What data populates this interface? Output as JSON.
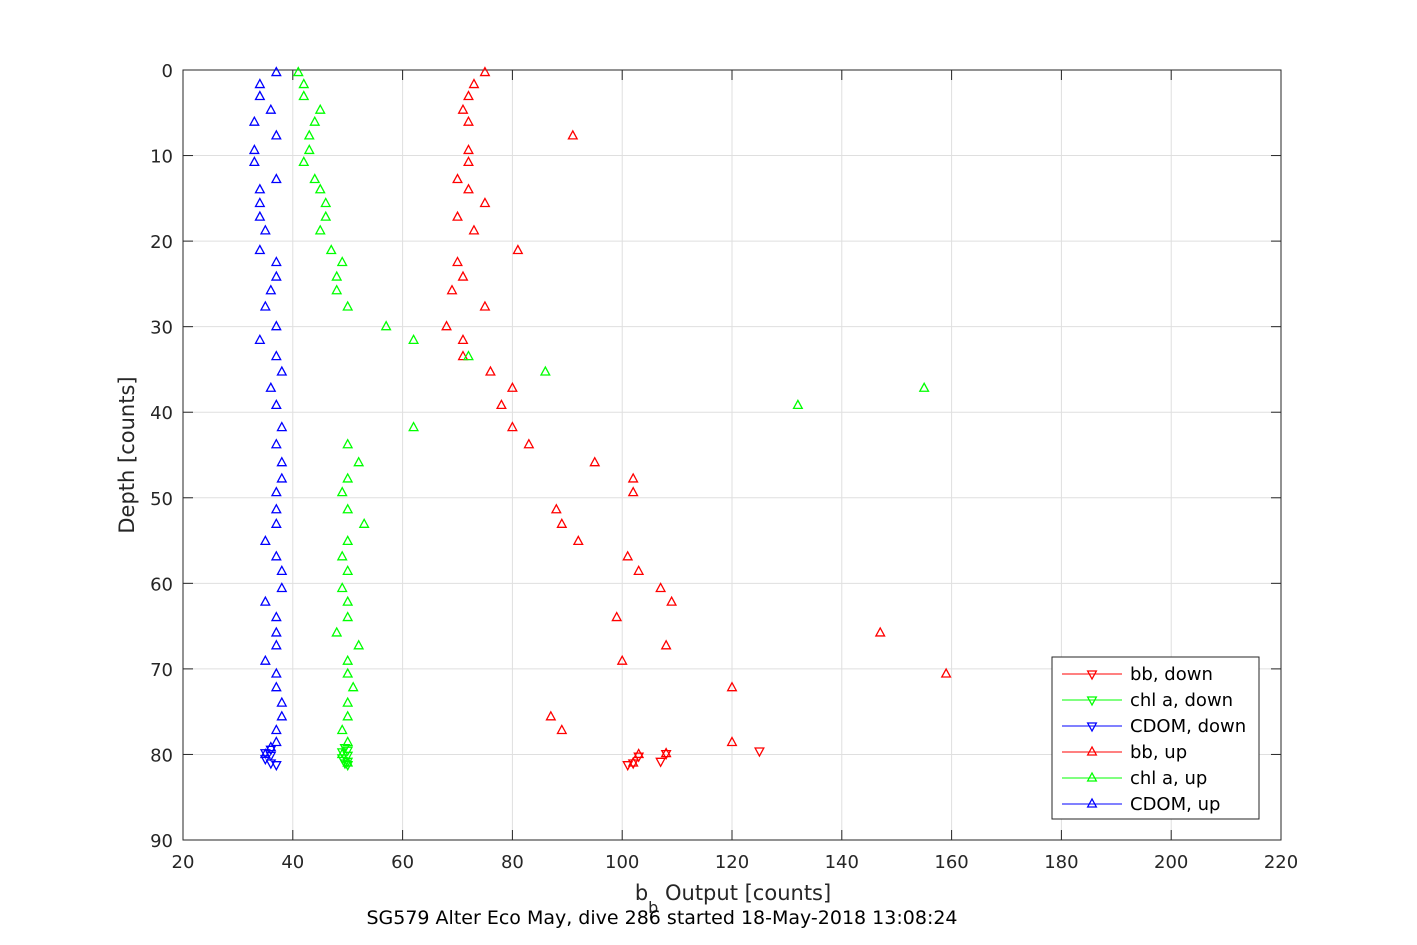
{
  "chart_data": {
    "type": "scatter",
    "caption": "SG579 Alter Eco May, dive 286 started 18-May-2018 13:08:24",
    "xlabel": {
      "main": "b",
      "sub": "b",
      "rest": " Output [counts]"
    },
    "ylabel": "Depth [counts]",
    "xlim": [
      20,
      220
    ],
    "ylim": [
      0,
      90
    ],
    "y_reversed": true,
    "grid": true,
    "legend_position": "bottom-right",
    "x_ticks": [
      20,
      40,
      60,
      80,
      100,
      120,
      140,
      160,
      180,
      200,
      220
    ],
    "y_ticks": [
      0,
      10,
      20,
      30,
      40,
      50,
      60,
      70,
      80,
      90
    ],
    "series": [
      {
        "name": "bb, down",
        "color": "#ff0000",
        "marker": "triangle-down",
        "points": [
          [
            101,
            81.2
          ],
          [
            102,
            81
          ],
          [
            107,
            80.8
          ],
          [
            103,
            80.2
          ],
          [
            108,
            79.9
          ],
          [
            125,
            79.6
          ]
        ]
      },
      {
        "name": "chl a, down",
        "color": "#00ff00",
        "marker": "triangle-down",
        "points": [
          [
            50,
            81.2
          ],
          [
            49.5,
            81
          ],
          [
            50,
            80.8
          ],
          [
            49,
            80.4
          ],
          [
            50,
            80.1
          ],
          [
            49,
            79.7
          ],
          [
            50,
            79.5
          ],
          [
            49.5,
            79.2
          ]
        ]
      },
      {
        "name": "CDOM, down",
        "color": "#0000ff",
        "marker": "triangle-down",
        "points": [
          [
            37,
            81.2
          ],
          [
            36,
            81
          ],
          [
            35,
            80.5
          ],
          [
            36,
            80.1
          ],
          [
            35,
            79.8
          ],
          [
            36,
            79.4
          ]
        ]
      },
      {
        "name": "bb, up",
        "color": "#ff0000",
        "marker": "triangle-up",
        "points": [
          [
            75,
            0.3
          ],
          [
            73,
            1.7
          ],
          [
            72,
            3.1
          ],
          [
            71,
            4.7
          ],
          [
            72,
            6.1
          ],
          [
            91,
            7.7
          ],
          [
            72,
            9.4
          ],
          [
            72,
            10.8
          ],
          [
            70,
            12.8
          ],
          [
            72,
            14
          ],
          [
            75,
            15.6
          ],
          [
            70,
            17.2
          ],
          [
            73,
            18.8
          ],
          [
            81,
            21.1
          ],
          [
            70,
            22.5
          ],
          [
            71,
            24.2
          ],
          [
            69,
            25.8
          ],
          [
            75,
            27.7
          ],
          [
            68,
            30
          ],
          [
            71,
            31.6
          ],
          [
            71,
            33.5
          ],
          [
            76,
            35.3
          ],
          [
            80,
            37.2
          ],
          [
            78,
            39.2
          ],
          [
            80,
            41.8
          ],
          [
            83,
            43.8
          ],
          [
            95,
            45.9
          ],
          [
            102,
            47.8
          ],
          [
            102,
            49.4
          ],
          [
            88,
            51.4
          ],
          [
            89,
            53.1
          ],
          [
            92,
            55.1
          ],
          [
            101,
            56.9
          ],
          [
            103,
            58.6
          ],
          [
            107,
            60.6
          ],
          [
            109,
            62.2
          ],
          [
            99,
            64
          ],
          [
            147,
            65.8
          ],
          [
            108,
            67.3
          ],
          [
            100,
            69.1
          ],
          [
            159,
            70.6
          ],
          [
            120,
            72.2
          ],
          [
            87,
            75.6
          ],
          [
            89,
            77.2
          ],
          [
            120,
            78.6
          ],
          [
            103,
            80
          ],
          [
            108,
            79.9
          ],
          [
            102,
            81
          ]
        ]
      },
      {
        "name": "chl a, up",
        "color": "#00ff00",
        "marker": "triangle-up",
        "points": [
          [
            41,
            0.3
          ],
          [
            42,
            1.7
          ],
          [
            42,
            3.1
          ],
          [
            45,
            4.7
          ],
          [
            44,
            6.1
          ],
          [
            43,
            7.7
          ],
          [
            43,
            9.4
          ],
          [
            42,
            10.8
          ],
          [
            44,
            12.8
          ],
          [
            45,
            14
          ],
          [
            46,
            15.6
          ],
          [
            46,
            17.2
          ],
          [
            45,
            18.8
          ],
          [
            47,
            21.1
          ],
          [
            49,
            22.5
          ],
          [
            48,
            24.2
          ],
          [
            48,
            25.8
          ],
          [
            50,
            27.7
          ],
          [
            57,
            30
          ],
          [
            62,
            31.6
          ],
          [
            72,
            33.5
          ],
          [
            86,
            35.3
          ],
          [
            155,
            37.2
          ],
          [
            132,
            39.2
          ],
          [
            62,
            41.8
          ],
          [
            50,
            43.8
          ],
          [
            52,
            45.9
          ],
          [
            50,
            47.8
          ],
          [
            49,
            49.4
          ],
          [
            50,
            51.4
          ],
          [
            53,
            53.1
          ],
          [
            50,
            55.1
          ],
          [
            49,
            56.9
          ],
          [
            50,
            58.6
          ],
          [
            49,
            60.6
          ],
          [
            50,
            62.2
          ],
          [
            50,
            64
          ],
          [
            48,
            65.8
          ],
          [
            52,
            67.3
          ],
          [
            50,
            69.1
          ],
          [
            50,
            70.6
          ],
          [
            51,
            72.2
          ],
          [
            50,
            74
          ],
          [
            50,
            75.6
          ],
          [
            49,
            77.2
          ],
          [
            50,
            78.6
          ],
          [
            49,
            80
          ],
          [
            50,
            81
          ]
        ]
      },
      {
        "name": "CDOM, up",
        "color": "#0000ff",
        "marker": "triangle-up",
        "points": [
          [
            37,
            0.3
          ],
          [
            34,
            1.7
          ],
          [
            34,
            3.1
          ],
          [
            36,
            4.7
          ],
          [
            33,
            6.1
          ],
          [
            37,
            7.7
          ],
          [
            33,
            9.4
          ],
          [
            33,
            10.8
          ],
          [
            37,
            12.8
          ],
          [
            34,
            14
          ],
          [
            34,
            15.6
          ],
          [
            34,
            17.2
          ],
          [
            35,
            18.8
          ],
          [
            34,
            21.1
          ],
          [
            37,
            22.5
          ],
          [
            37,
            24.2
          ],
          [
            36,
            25.8
          ],
          [
            35,
            27.7
          ],
          [
            37,
            30
          ],
          [
            34,
            31.6
          ],
          [
            37,
            33.5
          ],
          [
            38,
            35.3
          ],
          [
            36,
            37.2
          ],
          [
            37,
            39.2
          ],
          [
            38,
            41.8
          ],
          [
            37,
            43.8
          ],
          [
            38,
            45.9
          ],
          [
            38,
            47.8
          ],
          [
            37,
            49.4
          ],
          [
            37,
            51.4
          ],
          [
            37,
            53.1
          ],
          [
            35,
            55.1
          ],
          [
            37,
            56.9
          ],
          [
            38,
            58.6
          ],
          [
            38,
            60.6
          ],
          [
            35,
            62.2
          ],
          [
            37,
            64
          ],
          [
            37,
            65.8
          ],
          [
            37,
            67.3
          ],
          [
            35,
            69.1
          ],
          [
            37,
            70.6
          ],
          [
            37,
            72.2
          ],
          [
            38,
            74
          ],
          [
            38,
            75.6
          ],
          [
            37,
            77.2
          ],
          [
            37,
            78.6
          ],
          [
            36,
            79.2
          ],
          [
            35,
            80
          ]
        ]
      }
    ]
  }
}
